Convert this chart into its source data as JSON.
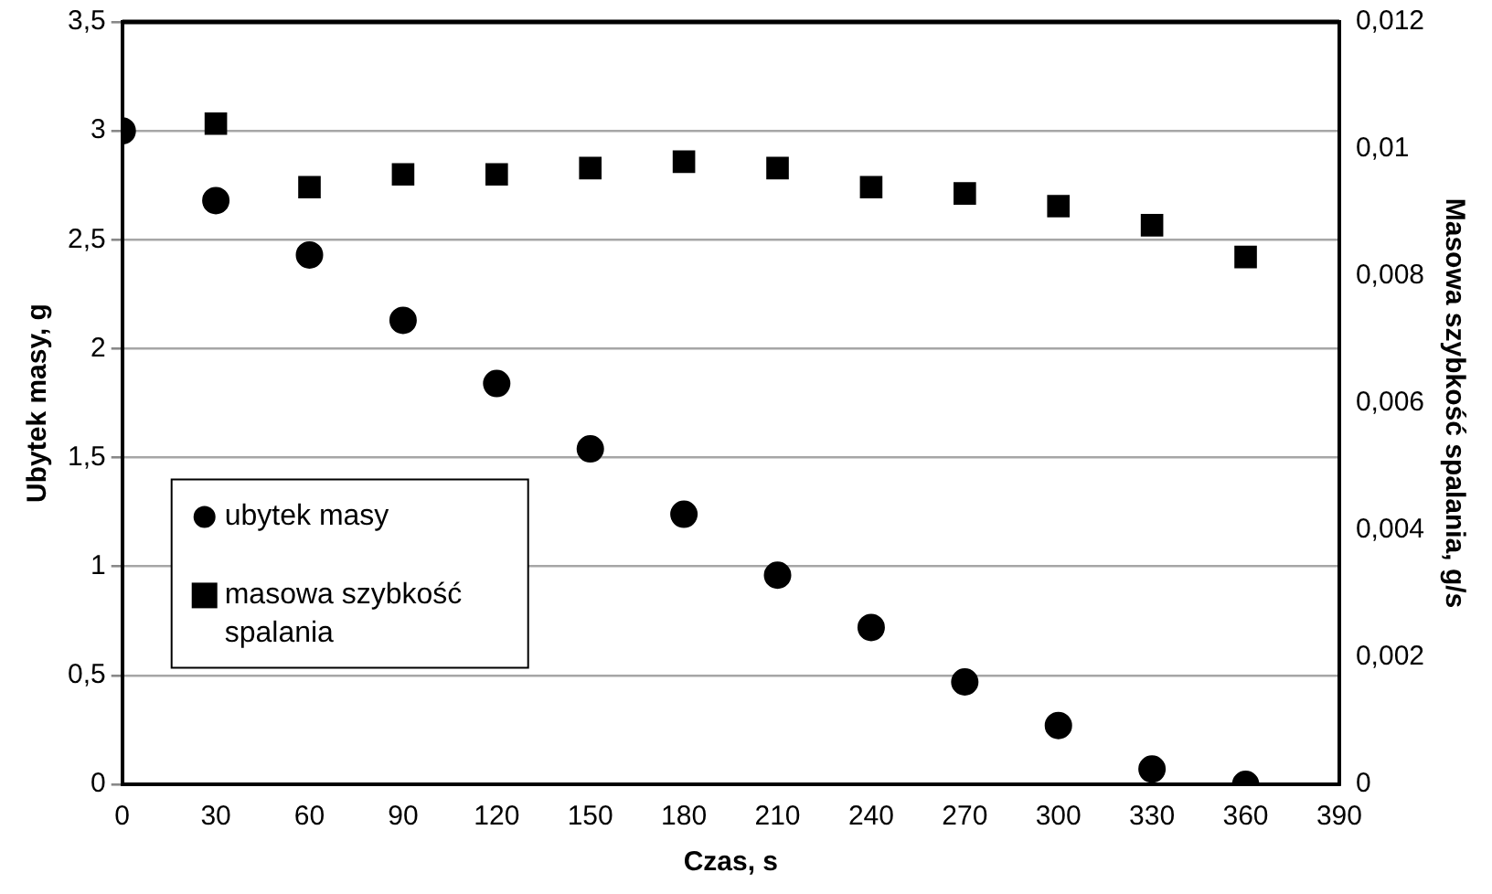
{
  "chart_data": {
    "type": "scatter",
    "xlabel": "Czas, s",
    "ylabel": "Ubytek masy, g",
    "y2label": "Masowa szybkość spalania, g/s",
    "x": [
      0,
      30,
      60,
      90,
      120,
      150,
      180,
      210,
      240,
      270,
      300,
      330,
      360
    ],
    "xlim": [
      0,
      390
    ],
    "xticks": [
      0,
      30,
      60,
      90,
      120,
      150,
      180,
      210,
      240,
      270,
      300,
      330,
      360,
      390
    ],
    "ylim": [
      0,
      3.5
    ],
    "yticks": [
      0,
      {
        "value": 0.5,
        "label": "0,5"
      },
      1,
      {
        "value": 1.5,
        "label": "1,5"
      },
      2,
      {
        "value": 2.5,
        "label": "2,5"
      },
      3,
      {
        "value": 3.5,
        "label": "3,5"
      }
    ],
    "y2lim": [
      0,
      0.012
    ],
    "y2ticks": [
      0,
      {
        "value": 0.002,
        "label": "0,002"
      },
      {
        "value": 0.004,
        "label": "0,004"
      },
      {
        "value": 0.006,
        "label": "0,006"
      },
      {
        "value": 0.008,
        "label": "0,008"
      },
      {
        "value": 0.01,
        "label": "0,01"
      },
      {
        "value": 0.012,
        "label": "0,012"
      }
    ],
    "grid": "y",
    "legend": "left",
    "series": [
      {
        "name": "ubytek masy",
        "color": "#000000",
        "marker": "circle",
        "values": [
          3.0,
          2.68,
          2.43,
          2.13,
          1.84,
          1.54,
          1.24,
          0.96,
          0.72,
          0.47,
          0.27,
          0.07,
          0
        ]
      },
      {
        "name": "masowa szybkość spalania",
        "color": "#000000",
        "marker": "square",
        "axis": "y2",
        "x": [
          30,
          60,
          90,
          120,
          150,
          180,
          210,
          240,
          270,
          300,
          330,
          360
        ],
        "values": [
          0.0104,
          0.0094,
          0.0096,
          0.0096,
          0.0097,
          0.0098,
          0.0097,
          0.0094,
          0.0093,
          0.0091,
          0.0088,
          0.0083
        ]
      }
    ]
  }
}
